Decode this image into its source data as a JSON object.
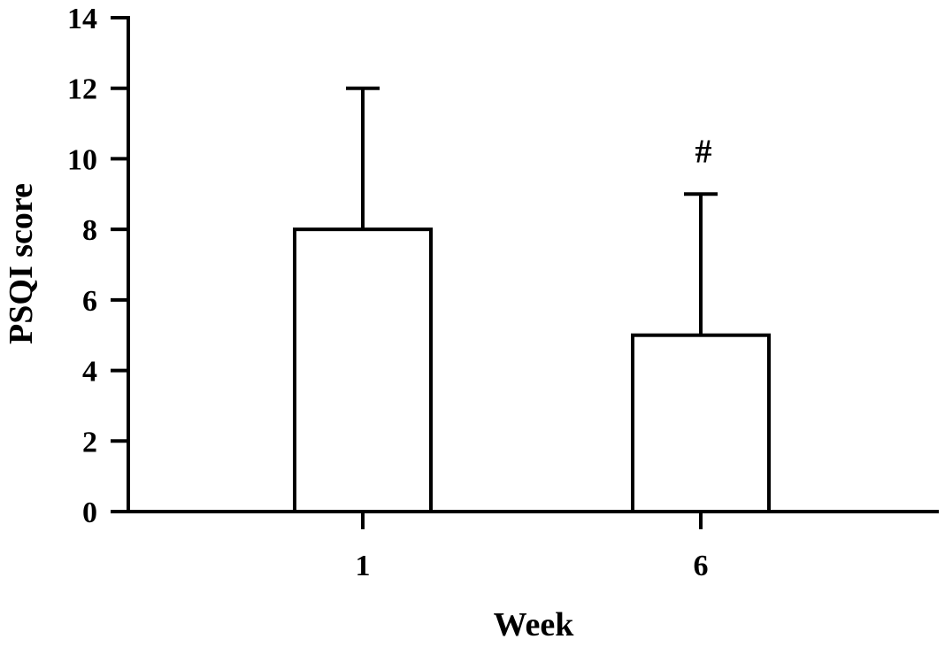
{
  "chart_data": {
    "type": "bar",
    "title": "",
    "xlabel": "Week",
    "ylabel": "PSQI score",
    "categories": [
      "1",
      "6"
    ],
    "values": [
      8,
      5
    ],
    "error_upper": [
      12,
      9
    ],
    "ylim": [
      0,
      14
    ],
    "yticks": [
      "0",
      "2",
      "4",
      "6",
      "8",
      "10",
      "12",
      "14"
    ],
    "annotations": [
      {
        "category": "6",
        "text": "#"
      }
    ],
    "grid": false,
    "legend": "none",
    "colors": {
      "bar_fill": "#ffffff",
      "stroke": "#000000"
    }
  }
}
